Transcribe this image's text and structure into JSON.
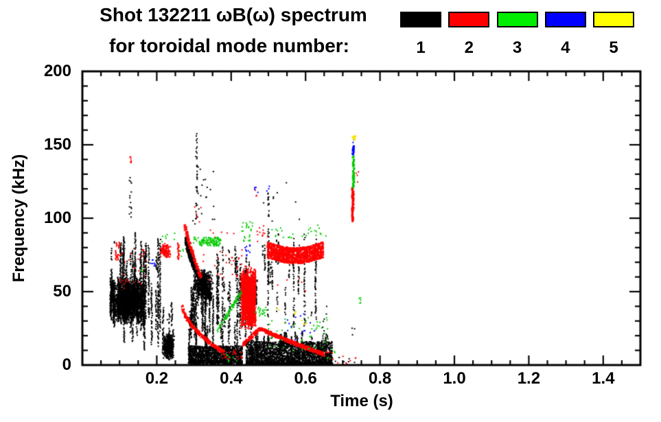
{
  "header": {
    "title_line1": "Shot 132211 ωB(ω) spectrum",
    "title_line2": "for toroidal mode number:"
  },
  "legend": {
    "items": [
      {
        "label": "1",
        "color": "#000000"
      },
      {
        "label": "2",
        "color": "#ff0000"
      },
      {
        "label": "3",
        "color": "#00ee00"
      },
      {
        "label": "4",
        "color": "#0000ff"
      },
      {
        "label": "5",
        "color": "#ffff00"
      }
    ]
  },
  "chart_data": {
    "type": "scatter",
    "title": "Shot 132211 ωB(ω) spectrum for toroidal mode number: 1-5",
    "xlabel": "Time (s)",
    "ylabel": "Frequency (kHz)",
    "xlim": [
      0,
      1.5
    ],
    "ylim": [
      0,
      200
    ],
    "xticks": [
      {
        "v": 0.2,
        "label": "0.2"
      },
      {
        "v": 0.4,
        "label": "0.4"
      },
      {
        "v": 0.6,
        "label": "0.6"
      },
      {
        "v": 0.8,
        "label": "0.8"
      },
      {
        "v": 1.0,
        "label": "1.0"
      },
      {
        "v": 1.2,
        "label": "1.2"
      },
      {
        "v": 1.4,
        "label": "1.4"
      }
    ],
    "yticks": [
      {
        "v": 0,
        "label": "0"
      },
      {
        "v": 50,
        "label": "50"
      },
      {
        "v": 100,
        "label": "100"
      },
      {
        "v": 150,
        "label": "150"
      },
      {
        "v": 200,
        "label": "200"
      }
    ],
    "x_minor_step": 0.05,
    "y_minor_step": 10,
    "grid": false,
    "legend_position": "top-right",
    "modes": {
      "1": {
        "name": "n=1",
        "color": "#000000"
      },
      "2": {
        "name": "n=2",
        "color": "#ff0000"
      },
      "3": {
        "name": "n=3",
        "color": "#00cc00"
      },
      "4": {
        "name": "n=4",
        "color": "#0000ff"
      },
      "5": {
        "name": "n=5",
        "color": "#f5e400"
      }
    },
    "features": [
      {
        "mode": 1,
        "kind": "vstreaks",
        "t": [
          0.075,
          0.165
        ],
        "f": [
          28,
          60
        ],
        "k": 80
      },
      {
        "mode": 1,
        "kind": "blob",
        "t": [
          0.075,
          0.165
        ],
        "f": [
          28,
          58
        ],
        "n": 1600
      },
      {
        "mode": 1,
        "kind": "vstreaks",
        "t": [
          0.078,
          0.21
        ],
        "f": [
          8,
          92
        ],
        "k": 40,
        "gap": 0.35
      },
      {
        "mode": 1,
        "kind": "blob",
        "t": [
          0.215,
          0.248
        ],
        "f": [
          3,
          22
        ],
        "n": 520
      },
      {
        "mode": 1,
        "kind": "vstreaks",
        "t": [
          0.215,
          0.248
        ],
        "f": [
          5,
          45
        ],
        "k": 8,
        "gap": 0.3
      },
      {
        "mode": 1,
        "kind": "dots",
        "t": [
          0.126,
          0.134
        ],
        "f": [
          95,
          128
        ],
        "n": 14
      },
      {
        "mode": 1,
        "kind": "vline",
        "t": [
          0.307
        ],
        "f": [
          98,
          158
        ],
        "gap": 0.68,
        "w": 2
      },
      {
        "mode": 1,
        "kind": "dots",
        "t": [
          0.29,
          0.36
        ],
        "f": [
          95,
          135
        ],
        "n": 22
      },
      {
        "mode": 1,
        "kind": "chirp",
        "t": [
          0.278,
          0.345
        ],
        "f": [
          86,
          46
        ],
        "pow": 0.7,
        "thick": 5,
        "n": 900
      },
      {
        "mode": 1,
        "kind": "blob",
        "t": [
          0.298,
          0.352
        ],
        "f": [
          44,
          66
        ],
        "n": 650
      },
      {
        "mode": 1,
        "kind": "vstreaks",
        "t": [
          0.285,
          0.355
        ],
        "f": [
          2,
          55
        ],
        "k": 34,
        "gap": 0.25
      },
      {
        "mode": 1,
        "kind": "band",
        "t": [
          0.285,
          0.43
        ],
        "f": [
          1,
          13
        ],
        "n": 1500,
        "bias": 1.3
      },
      {
        "mode": 1,
        "kind": "vstreaks",
        "t": [
          0.355,
          0.47
        ],
        "f": [
          2,
          85
        ],
        "k": 30,
        "gap": 0.45
      },
      {
        "mode": 1,
        "kind": "band",
        "t": [
          0.44,
          0.672
        ],
        "f": [
          0,
          16
        ],
        "n": 2600,
        "bias": 1.5
      },
      {
        "mode": 1,
        "kind": "vstreaks",
        "t": [
          0.445,
          0.665
        ],
        "f": [
          4,
          23
        ],
        "k": 34,
        "gap": 0.15
      },
      {
        "mode": 1,
        "kind": "vstreaks",
        "t": [
          0.47,
          0.635
        ],
        "f": [
          25,
          92
        ],
        "k": 20,
        "gap": 0.55
      },
      {
        "mode": 1,
        "kind": "vline",
        "t": [
          0.5
        ],
        "f": [
          10,
          120
        ],
        "gap": 0.75,
        "w": 2
      },
      {
        "mode": 1,
        "kind": "dots",
        "t": [
          0.485,
          0.6
        ],
        "f": [
          98,
          126
        ],
        "n": 10
      },
      {
        "mode": 1,
        "kind": "dots",
        "t": [
          0.643,
          0.657
        ],
        "f": [
          18,
          40
        ],
        "n": 9
      },
      {
        "mode": 1,
        "kind": "dots",
        "t": [
          0.72,
          0.735
        ],
        "f": [
          20,
          26
        ],
        "n": 3
      },
      {
        "mode": 1,
        "kind": "dots",
        "t": [
          0.68,
          0.74
        ],
        "f": [
          1,
          6
        ],
        "n": 6
      },
      {
        "mode": 2,
        "kind": "vstreaks",
        "t": [
          0.088,
          0.102
        ],
        "f": [
          70,
          84
        ],
        "k": 6
      },
      {
        "mode": 2,
        "kind": "dots",
        "t": [
          0.127,
          0.133
        ],
        "f": [
          136,
          142
        ],
        "n": 7
      },
      {
        "mode": 2,
        "kind": "dots",
        "t": [
          0.1,
          0.17
        ],
        "f": [
          52,
          80
        ],
        "n": 30
      },
      {
        "mode": 2,
        "kind": "blob",
        "t": [
          0.208,
          0.238
        ],
        "f": [
          72,
          83
        ],
        "n": 130
      },
      {
        "mode": 2,
        "kind": "vline",
        "t": [
          0.258
        ],
        "f": [
          72,
          83
        ],
        "gap": 0.2,
        "w": 2
      },
      {
        "mode": 2,
        "kind": "chirp",
        "t": [
          0.275,
          0.318
        ],
        "f": [
          96,
          60
        ],
        "pow": 0.85,
        "thick": 3,
        "n": 230
      },
      {
        "mode": 2,
        "kind": "chirp",
        "t": [
          0.268,
          0.378
        ],
        "f": [
          42,
          9
        ],
        "pow": 0.55,
        "thick": 2.5,
        "n": 340
      },
      {
        "mode": 2,
        "kind": "dots",
        "t": [
          0.375,
          0.432
        ],
        "f": [
          4,
          11
        ],
        "n": 26
      },
      {
        "mode": 2,
        "kind": "dots",
        "t": [
          0.32,
          0.43
        ],
        "f": [
          55,
          80
        ],
        "n": 26
      },
      {
        "mode": 2,
        "kind": "dots",
        "t": [
          0.34,
          0.43
        ],
        "f": [
          80,
          93
        ],
        "n": 8
      },
      {
        "mode": 2,
        "kind": "blob",
        "t": [
          0.425,
          0.468
        ],
        "f": [
          24,
          68
        ],
        "n": 1100
      },
      {
        "mode": 2,
        "kind": "vstreaks",
        "t": [
          0.428,
          0.466
        ],
        "f": [
          26,
          66
        ],
        "k": 40
      },
      {
        "mode": 2,
        "kind": "chirp",
        "t": [
          0.432,
          0.478
        ],
        "f": [
          14,
          25
        ],
        "pow": 1,
        "thick": 2.5,
        "n": 130
      },
      {
        "mode": 2,
        "kind": "chirp",
        "t": [
          0.478,
          0.652
        ],
        "f": [
          25,
          7
        ],
        "pow": 0.9,
        "thick": 2.5,
        "n": 560
      },
      {
        "mode": 2,
        "kind": "band",
        "t": [
          0.497,
          0.648
        ],
        "f": [
          73,
          84
        ],
        "n": 1500,
        "wave": -4
      },
      {
        "mode": 2,
        "kind": "dots",
        "t": [
          0.465,
          0.5
        ],
        "f": [
          84,
          95
        ],
        "n": 12
      },
      {
        "mode": 2,
        "kind": "dots",
        "t": [
          0.46,
          0.475
        ],
        "f": [
          112,
          120
        ],
        "n": 3
      },
      {
        "mode": 2,
        "kind": "dots",
        "t": [
          0.298,
          0.33
        ],
        "f": [
          97,
          118
        ],
        "n": 5
      },
      {
        "mode": 2,
        "kind": "vline",
        "t": [
          0.727
        ],
        "f": [
          98,
          121
        ],
        "gap": 0.1,
        "w": 3
      },
      {
        "mode": 2,
        "kind": "dots",
        "t": [
          0.735,
          0.745
        ],
        "f": [
          124,
          132
        ],
        "n": 4
      },
      {
        "mode": 2,
        "kind": "dots",
        "t": [
          0.645,
          0.675
        ],
        "f": [
          4,
          10
        ],
        "n": 10
      },
      {
        "mode": 2,
        "kind": "dots",
        "t": [
          0.685,
          0.735
        ],
        "f": [
          0,
          6
        ],
        "n": 8
      },
      {
        "mode": 2,
        "kind": "dots",
        "t": [
          0.52,
          0.6
        ],
        "f": [
          50,
          60
        ],
        "n": 5
      },
      {
        "mode": 3,
        "kind": "band",
        "t": [
          0.313,
          0.372
        ],
        "f": [
          81,
          87
        ],
        "n": 120
      },
      {
        "mode": 3,
        "kind": "dots",
        "t": [
          0.298,
          0.315
        ],
        "f": [
          83,
          88
        ],
        "n": 8
      },
      {
        "mode": 3,
        "kind": "dots",
        "t": [
          0.428,
          0.458
        ],
        "f": [
          84,
          98
        ],
        "n": 24
      },
      {
        "mode": 3,
        "kind": "dots",
        "t": [
          0.497,
          0.655
        ],
        "f": [
          86,
          96
        ],
        "n": 26
      },
      {
        "mode": 3,
        "kind": "chirp",
        "t": [
          0.362,
          0.428
        ],
        "f": [
          23,
          50
        ],
        "pow": 1,
        "thick": 2.5,
        "n": 80
      },
      {
        "mode": 3,
        "kind": "dots",
        "t": [
          0.462,
          0.498
        ],
        "f": [
          33,
          40
        ],
        "n": 20
      },
      {
        "mode": 3,
        "kind": "dots",
        "t": [
          0.5,
          0.66
        ],
        "f": [
          8,
          34
        ],
        "n": 46
      },
      {
        "mode": 3,
        "kind": "vline",
        "t": [
          0.729
        ],
        "f": [
          121,
          142
        ],
        "gap": 0.25,
        "w": 3
      },
      {
        "mode": 3,
        "kind": "dots",
        "t": [
          0.744,
          0.752
        ],
        "f": [
          42,
          47
        ],
        "n": 5
      },
      {
        "mode": 3,
        "kind": "dots",
        "t": [
          0.212,
          0.25
        ],
        "f": [
          84,
          90
        ],
        "n": 7
      },
      {
        "mode": 3,
        "kind": "dots",
        "t": [
          0.252,
          0.272
        ],
        "f": [
          73,
          79
        ],
        "n": 4
      },
      {
        "mode": 3,
        "kind": "dots",
        "t": [
          0.385,
          0.415
        ],
        "f": [
          1,
          7
        ],
        "n": 8
      },
      {
        "mode": 3,
        "kind": "dots",
        "t": [
          0.655,
          0.685
        ],
        "f": [
          4,
          11
        ],
        "n": 5
      },
      {
        "mode": 3,
        "kind": "dots",
        "t": [
          0.15,
          0.162
        ],
        "f": [
          62,
          68
        ],
        "n": 3
      },
      {
        "mode": 4,
        "kind": "dots",
        "t": [
          0.183,
          0.196
        ],
        "f": [
          66,
          72
        ],
        "n": 8
      },
      {
        "mode": 4,
        "kind": "dots",
        "t": [
          0.437,
          0.455
        ],
        "f": [
          74,
          82
        ],
        "n": 10
      },
      {
        "mode": 4,
        "kind": "dots",
        "t": [
          0.463,
          0.472
        ],
        "f": [
          116,
          121
        ],
        "n": 4
      },
      {
        "mode": 4,
        "kind": "dots",
        "t": [
          0.53,
          0.63
        ],
        "f": [
          16,
          38
        ],
        "n": 14
      },
      {
        "mode": 4,
        "kind": "dots",
        "t": [
          0.496,
          0.504
        ],
        "f": [
          117,
          123
        ],
        "n": 3
      },
      {
        "mode": 4,
        "kind": "vline",
        "t": [
          0.728
        ],
        "f": [
          143,
          149
        ],
        "gap": 0.3,
        "w": 3
      },
      {
        "mode": 4,
        "kind": "dots",
        "t": [
          0.726,
          0.732
        ],
        "f": [
          151,
          154
        ],
        "n": 3
      },
      {
        "mode": 5,
        "kind": "dots",
        "t": [
          0.724,
          0.733
        ],
        "f": [
          150,
          156
        ],
        "n": 6,
        "w": 3
      },
      {
        "mode": 5,
        "kind": "dots",
        "t": [
          0.565,
          0.574
        ],
        "f": [
          34,
          38
        ],
        "n": 3
      },
      {
        "mode": 5,
        "kind": "dots",
        "t": [
          0.588,
          0.604
        ],
        "f": [
          26,
          33
        ],
        "n": 4
      },
      {
        "mode": 5,
        "kind": "dots",
        "t": [
          0.522,
          0.53
        ],
        "f": [
          36,
          39
        ],
        "n": 2
      }
    ]
  }
}
